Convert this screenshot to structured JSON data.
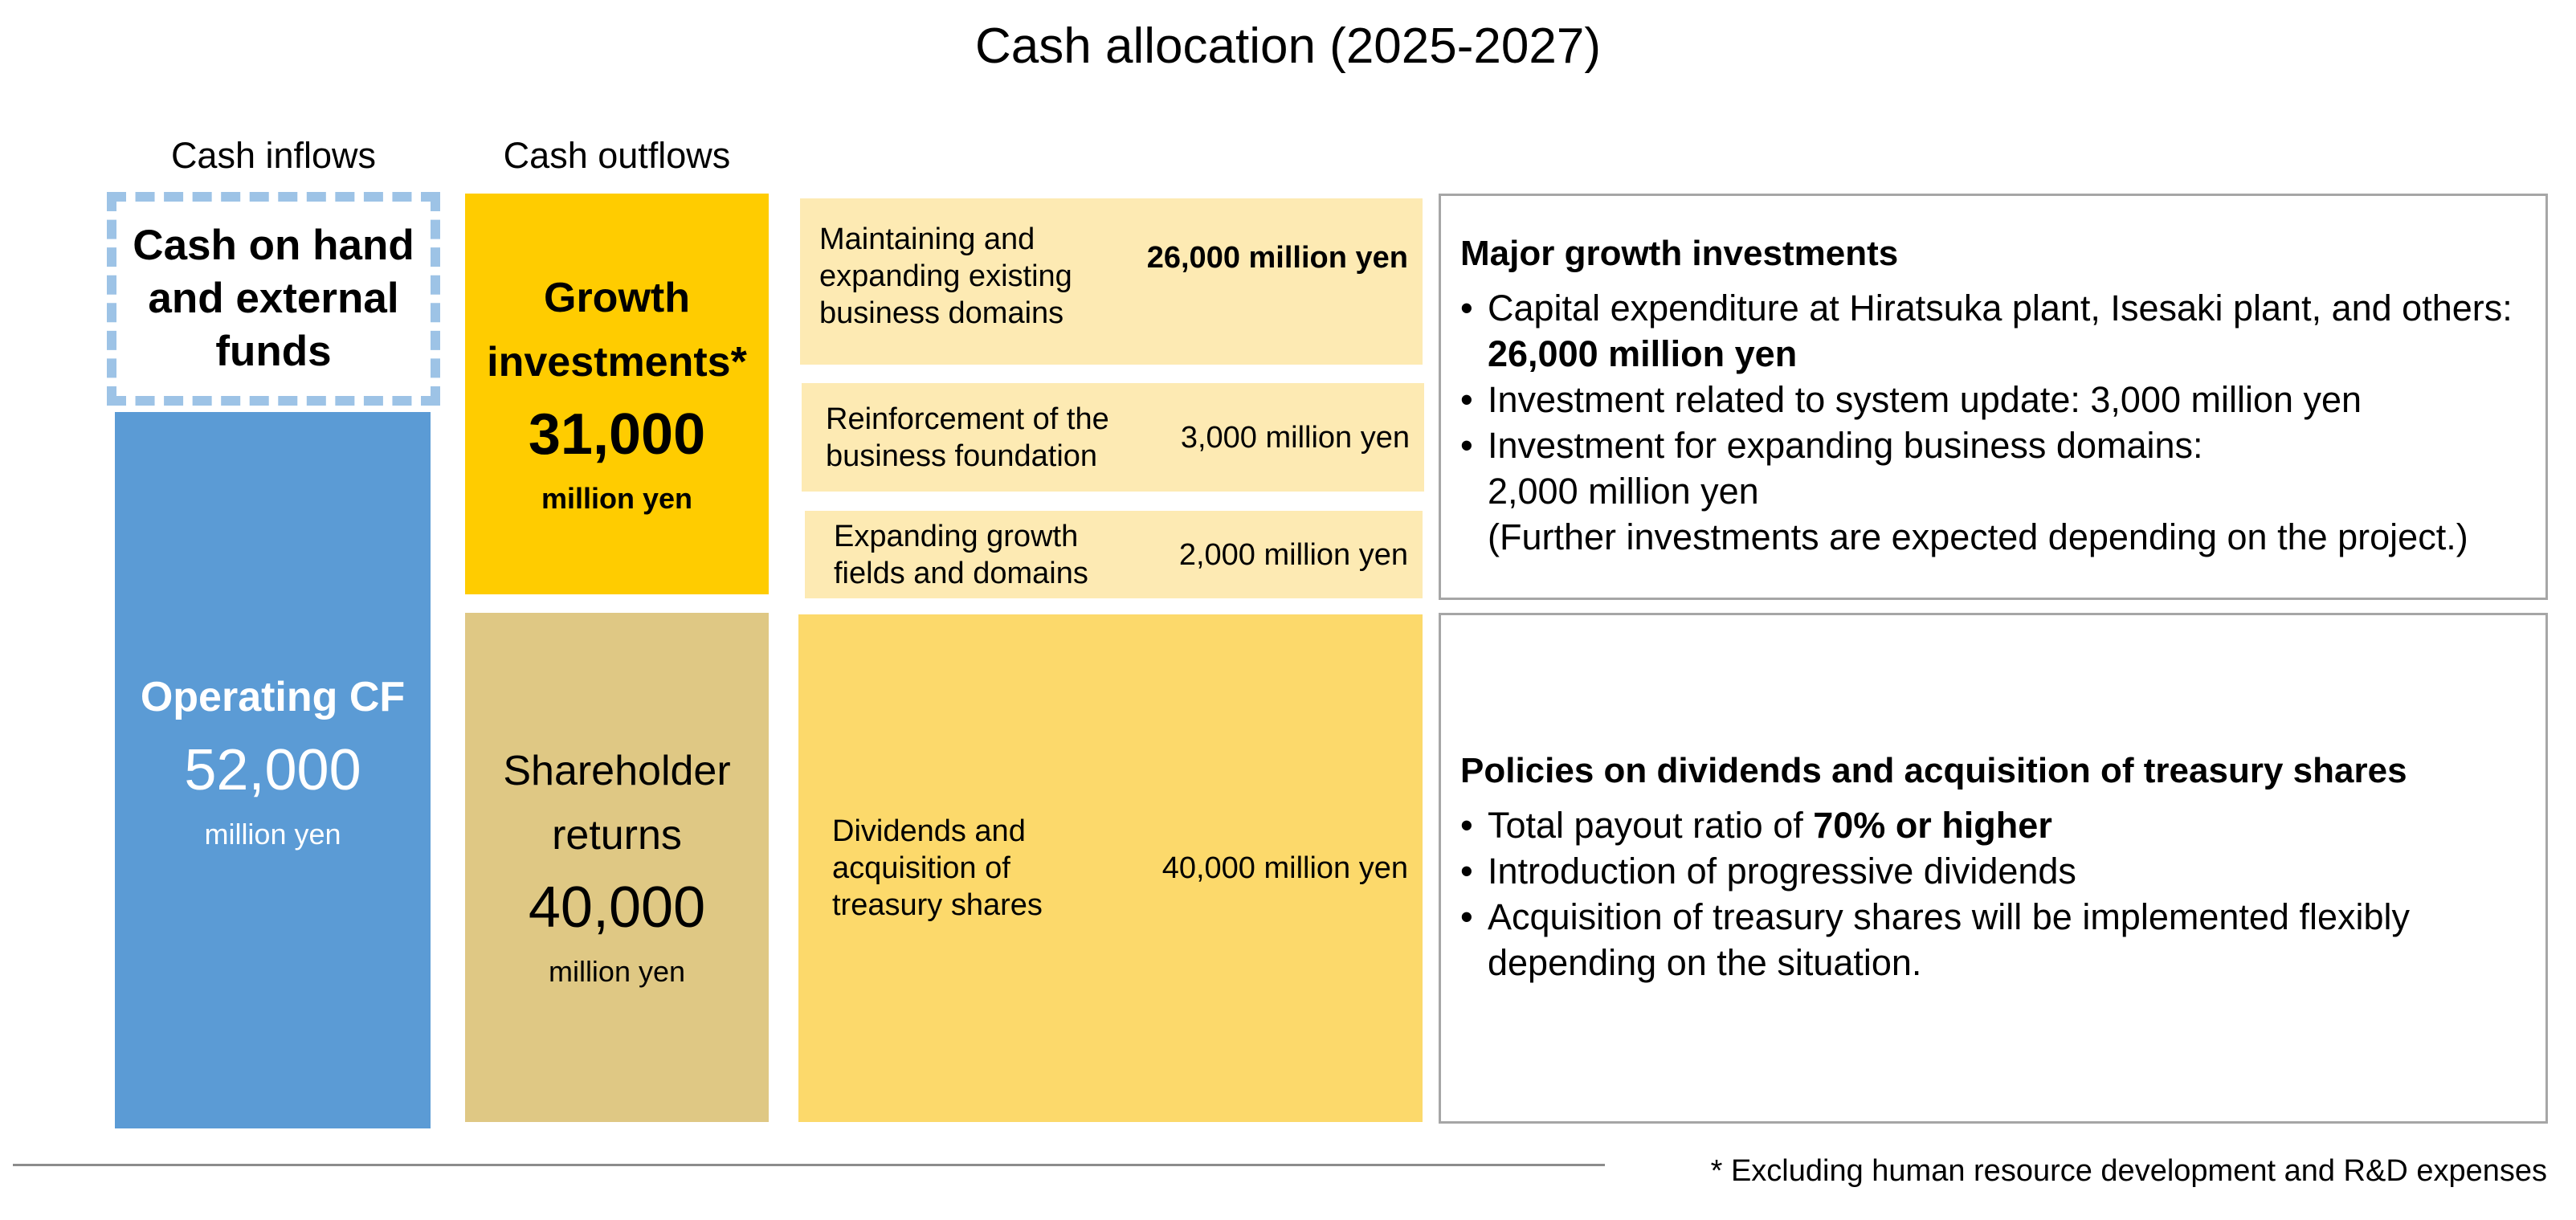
{
  "title": "Cash allocation (2025-2027)",
  "headers": {
    "inflows": "Cash inflows",
    "outflows": "Cash outflows"
  },
  "inflows": {
    "cash_on_hand": [
      "Cash on hand",
      "and external",
      "funds"
    ],
    "operating_cf": {
      "label": "Operating CF",
      "value": "52,000",
      "unit": "million yen"
    }
  },
  "outflows": {
    "growth": {
      "label": [
        "Growth",
        "investments*"
      ],
      "value": "31,000",
      "unit": "million yen"
    },
    "shareholder": {
      "label": [
        "Shareholder",
        "returns"
      ],
      "value": "40,000",
      "unit": "million yen"
    }
  },
  "breakdown": [
    {
      "label": [
        "Maintaining and",
        "expanding existing",
        "business domains"
      ],
      "value": "26,000 million yen"
    },
    {
      "label": [
        "Reinforcement of the",
        "business foundation"
      ],
      "value": "3,000 million yen"
    },
    {
      "label": [
        "Expanding growth",
        "fields and domains"
      ],
      "value": "2,000 million yen"
    },
    {
      "label": [
        "Dividends and",
        "acquisition of",
        "treasury shares"
      ],
      "value": "40,000 million yen"
    }
  ],
  "panel_growth": {
    "heading": "Major growth investments",
    "b1_text": "Capital expenditure at Hiratsuka plant, Isesaki plant, and others: ",
    "b1_bold": "26,000 million yen",
    "b2": "Investment related to system update: 3,000 million yen",
    "b3": "Investment for expanding business domains:",
    "b3_line2": "2,000 million yen",
    "b3_note": "(Further investments are expected depending on the project.)"
  },
  "panel_returns": {
    "heading": "Policies on dividends and acquisition of treasury shares",
    "b1_text": "Total payout ratio of ",
    "b1_bold": "70% or higher",
    "b2": "Introduction of progressive dividends",
    "b3": "Acquisition of treasury shares will be implemented flexibly depending on the situation."
  },
  "footnote": "*  Excluding human resource development and R&D expenses",
  "colors": {
    "operating_cf": "#5b9bd5",
    "growth": "#ffcc00",
    "shareholder": "#dfc884",
    "breakdown_light": "#fdeab3",
    "dividends": "#fcd96b",
    "dashed": "#9dc3e6"
  }
}
